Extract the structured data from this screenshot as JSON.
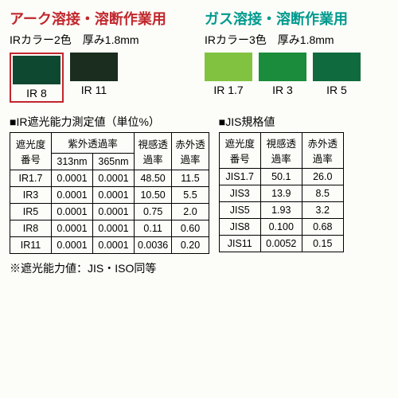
{
  "section_arc": {
    "title": "アーク溶接・溶断作業用",
    "title_color": "#c1272d",
    "subtitle": "IRカラー2色　厚み1.8mm",
    "swatches": [
      {
        "label": "IR 8",
        "color": "#0f4830",
        "selected": true
      },
      {
        "label": "IR 11",
        "color": "#1a2d1e",
        "selected": false
      }
    ]
  },
  "section_gas": {
    "title": "ガス溶接・溶断作業用",
    "title_color": "#009a8e",
    "subtitle": "IRカラー3色　厚み1.8mm",
    "swatches": [
      {
        "label": "IR 1.7",
        "color": "#81c341",
        "selected": false
      },
      {
        "label": "IR 3",
        "color": "#1a8c3b",
        "selected": false
      },
      {
        "label": "IR 5",
        "color": "#0f6b3e",
        "selected": false
      }
    ]
  },
  "table1": {
    "title": "■IR遮光能力測定値（単位%）",
    "header_row1": [
      "遮光度番号",
      "紫外透過率",
      "視感透過率",
      "赤外透過率"
    ],
    "uv_sub": [
      "313nm",
      "365nm"
    ],
    "rows": [
      [
        "IR1.7",
        "0.0001",
        "0.0001",
        "48.50",
        "11.5"
      ],
      [
        "IR3",
        "0.0001",
        "0.0001",
        "10.50",
        "5.5"
      ],
      [
        "IR5",
        "0.0001",
        "0.0001",
        "0.75",
        "2.0"
      ],
      [
        "IR8",
        "0.0001",
        "0.0001",
        "0.11",
        "0.60"
      ],
      [
        "IR11",
        "0.0001",
        "0.0001",
        "0.0036",
        "0.20"
      ]
    ]
  },
  "table2": {
    "title": "■JIS規格値",
    "header": [
      "遮光度番号",
      "視感透過率",
      "赤外透過率"
    ],
    "rows": [
      [
        "JIS1.7",
        "50.1",
        "26.0"
      ],
      [
        "JIS3",
        "13.9",
        "8.5"
      ],
      [
        "JIS5",
        "1.93",
        "3.2"
      ],
      [
        "JIS8",
        "0.100",
        "0.68"
      ],
      [
        "JIS11",
        "0.0052",
        "0.15"
      ]
    ]
  },
  "footnote": "※遮光能力値：JIS・ISO同等"
}
